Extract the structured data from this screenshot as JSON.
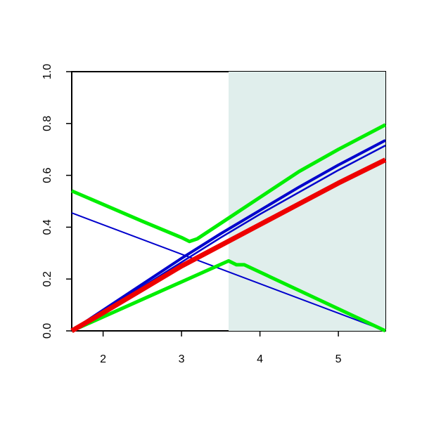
{
  "chart_data": {
    "type": "line",
    "xlim": [
      1.6,
      5.6
    ],
    "ylim": [
      0,
      1
    ],
    "xticks": [
      2,
      3,
      4,
      5
    ],
    "yticks": [
      {
        "value": 0,
        "label": "0.0"
      },
      0.2,
      0.4,
      0.6,
      0.8,
      {
        "value": 1,
        "label": "1.0"
      }
    ],
    "shaded_region": {
      "xlim": [
        3.6,
        5.6
      ],
      "color": "#e0eeec"
    },
    "series": [
      {
        "color": "#0000cc",
        "width": 2,
        "x": [
          1.6,
          5.6
        ],
        "values": [
          0.455,
          0
        ]
      },
      {
        "color": "#00ee00",
        "width": 5,
        "x": [
          1.6,
          2,
          2.5,
          3,
          3.1,
          3.2,
          3.5,
          4,
          4.5,
          5,
          5.6
        ],
        "values": [
          0.54,
          0.488,
          0.423,
          0.36,
          0.345,
          0.355,
          0.415,
          0.515,
          0.615,
          0.7,
          0.795
        ]
      },
      {
        "color": "#00ee00",
        "width": 5,
        "x": [
          1.6,
          3.6,
          3.7,
          3.8,
          5.6
        ],
        "values": [
          0,
          0.27,
          0.255,
          0.255,
          0
        ]
      },
      {
        "color": "#0000cc",
        "width": 2.5,
        "x": [
          1.6,
          2,
          2.5,
          3,
          3.5,
          4,
          4.5,
          5,
          5.6
        ],
        "values": [
          0,
          0.075,
          0.17,
          0.265,
          0.36,
          0.45,
          0.535,
          0.62,
          0.715
        ]
      },
      {
        "color": "#0000cc",
        "width": 4,
        "x": [
          1.6,
          2,
          2.5,
          3,
          3.5,
          4,
          4.5,
          5,
          5.6
        ],
        "values": [
          0,
          0.08,
          0.18,
          0.28,
          0.375,
          0.465,
          0.555,
          0.64,
          0.735
        ]
      },
      {
        "color": "#ee0000",
        "width": 7,
        "x": [
          1.6,
          2,
          2.5,
          3,
          3.5,
          4,
          4.5,
          5,
          5.6
        ],
        "values": [
          0,
          0.07,
          0.16,
          0.25,
          0.33,
          0.41,
          0.49,
          0.57,
          0.66
        ]
      }
    ]
  }
}
